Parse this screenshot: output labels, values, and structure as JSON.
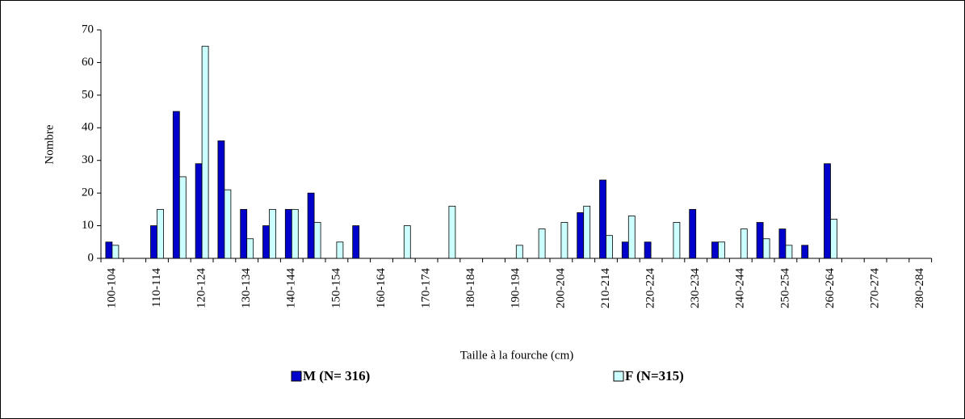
{
  "chart_data": {
    "type": "bar",
    "x_label": "Taille à la fourche (cm)",
    "y_label": "Nombre",
    "categories": [
      "100-104",
      null,
      "110-114",
      null,
      "120-124",
      null,
      "130-134",
      null,
      "140-144",
      null,
      "150-154",
      null,
      "160-164",
      null,
      "170-174",
      null,
      "180-184",
      null,
      "190-194",
      null,
      "200-204",
      null,
      "210-214",
      null,
      "220-224",
      null,
      "230-234",
      null,
      "240-244",
      null,
      "250-254",
      null,
      "260-264",
      null,
      "270-274",
      null,
      "280-284"
    ],
    "series": [
      {
        "name": "M (N= 316)",
        "color": "#0000cc",
        "values": [
          5,
          0,
          10,
          45,
          29,
          36,
          15,
          10,
          15,
          20,
          0,
          10,
          0,
          0,
          0,
          0,
          0,
          0,
          0,
          0,
          0,
          14,
          24,
          5,
          5,
          0,
          15,
          5,
          0,
          11,
          9,
          4,
          29,
          0,
          0,
          0,
          0
        ]
      },
      {
        "name": "F (N=315)",
        "color": "#ccffff",
        "values": [
          4,
          0,
          15,
          25,
          65,
          21,
          6,
          15,
          15,
          11,
          5,
          0,
          0,
          10,
          0,
          16,
          0,
          0,
          4,
          9,
          11,
          16,
          7,
          13,
          0,
          11,
          0,
          5,
          9,
          6,
          4,
          0,
          12,
          0,
          0,
          0,
          0
        ]
      }
    ],
    "ylim": [
      0,
      70
    ],
    "yticks": [
      0,
      10,
      20,
      30,
      40,
      50,
      60,
      70
    ]
  }
}
